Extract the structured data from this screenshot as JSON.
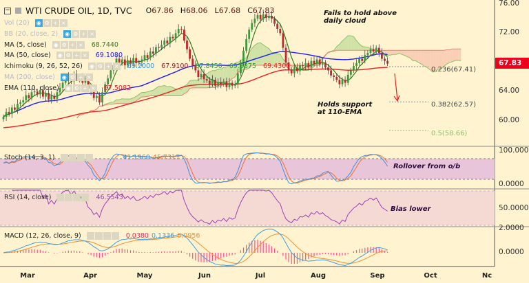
{
  "header": {
    "symbol": "WTI CRUDE OIL, 1D, TVC",
    "open_label": "O",
    "open": "67.86",
    "high_label": "H",
    "high": "68.06",
    "low_label": "L",
    "low": "67.68",
    "close_label": "C",
    "close": "67.83"
  },
  "indicators": [
    {
      "label": "Vol (20)",
      "value": "",
      "dim": true
    },
    {
      "label": "BB (20, close, 2)",
      "value": "",
      "dim": true
    },
    {
      "label": "MA (5, close)",
      "value": "68.7440",
      "color": "#2e7d1e"
    },
    {
      "label": "MA (50, close)",
      "value": "69.1080",
      "color": "#1a1aff"
    },
    {
      "label": "Ichimoku (9, 26, 52, 26)",
      "values": [
        "69.2000",
        "67.9100",
        "67.8450",
        "69.8875",
        "69.4300"
      ],
      "colors": [
        "#2196f3",
        "#8b1a1a",
        "#2e9a2e",
        "#2e9a2e",
        "#e52222"
      ]
    },
    {
      "label": "MA (200, close)",
      "value": "",
      "dim": true
    },
    {
      "label": "EMA (110, close)",
      "value": "67.5082",
      "color": "#e52222"
    }
  ],
  "oscillators": {
    "stoch": {
      "label": "Stoch (14, 3, 1)",
      "k": "41.1960",
      "d": "45.7317"
    },
    "rsi": {
      "label": "RSI (14, close)",
      "value": "46.5543"
    },
    "macd": {
      "label": "MACD (12, 26, close, 9)",
      "hist": "0.0380",
      "macd": "0.1336",
      "signal": "0.0956"
    }
  },
  "annotations": {
    "top": "Fails to hold above\ndaily cloud",
    "support": "Holds support\nat 110-EMA",
    "stoch": "Rollover from o/b",
    "rsi": "Bias lower"
  },
  "fib": [
    {
      "label": "0.236(67.41)",
      "price": 67.41,
      "color": "#888"
    },
    {
      "label": "0.382(62.57)",
      "price": 62.57,
      "color": "#888"
    },
    {
      "label": "0.5(58.66)",
      "price": 58.66,
      "color": "#8fbf6f"
    }
  ],
  "current_price": "67.83",
  "axes": {
    "price_ticks": [
      "76.00",
      "72.00",
      "64.00",
      "60.00"
    ],
    "stoch_ticks": [
      "100.0000",
      "0.0000"
    ],
    "rsi_ticks": [
      "50.0000"
    ],
    "macd_ticks": [
      "2.0000",
      "0.0000"
    ],
    "months": [
      "Mar",
      "Apr",
      "May",
      "Jun",
      "Jul",
      "Aug",
      "Sep",
      "Oct",
      "Nc"
    ]
  },
  "colors": {
    "up": "#3c9a3c",
    "down": "#c0262a",
    "ma5": "#2e7d1e",
    "ma50": "#1a1aff",
    "ema110": "#e52222",
    "stoch_k": "#3d8fe0",
    "stoch_d": "#f07030",
    "rsi": "#9b3fb5",
    "macd": "#3d9fe0",
    "signal": "#f09030",
    "hist": "#ff4d88"
  },
  "chart_data": {
    "type": "candlestick",
    "title": "WTI CRUDE OIL, 1D, TVC",
    "ylim": [
      56,
      76
    ],
    "closes": [
      60.5,
      61.2,
      60.9,
      61.8,
      61.5,
      62.3,
      62.5,
      62.8,
      63.5,
      63.1,
      63.9,
      64.0,
      63.6,
      64.2,
      63.3,
      63.8,
      62.9,
      63.4,
      63.0,
      63.9,
      64.5,
      65.2,
      65.6,
      66.0,
      65.4,
      66.3,
      65.8,
      66.0,
      65.2,
      65.5,
      64.4,
      64.0,
      63.1,
      63.4,
      62.5,
      63.9,
      65.0,
      65.8,
      66.9,
      67.6,
      68.5,
      67.9,
      68.4,
      67.6,
      68.3,
      67.8,
      68.6,
      67.9,
      68.0,
      68.4,
      69.0,
      68.6,
      69.5,
      69.2,
      70.1,
      70.0,
      70.4,
      71.0,
      70.6,
      71.5,
      71.3,
      72.0,
      72.6,
      72.5,
      71.0,
      69.8,
      68.5,
      67.6,
      66.9,
      66.0,
      66.4,
      65.7,
      65.5,
      65.0,
      65.6,
      64.8,
      65.3,
      65.0,
      65.4,
      64.6,
      65.2,
      64.8,
      65.0,
      66.5,
      68.0,
      69.6,
      71.2,
      72.5,
      73.4,
      74.0,
      74.5,
      73.9,
      74.6,
      74.1,
      74.4,
      74.0,
      73.3,
      72.6,
      72.0,
      70.0,
      68.0,
      67.0,
      66.5,
      67.2,
      66.8,
      67.6,
      67.5,
      67.9,
      67.3,
      68.2,
      67.8,
      68.4,
      67.7,
      68.0,
      67.3,
      66.9,
      66.2,
      66.0,
      65.6,
      65.0,
      65.6,
      65.2,
      66.3,
      66.9,
      67.5,
      67.9,
      68.5,
      68.2,
      69.0,
      69.3,
      69.8,
      69.5,
      70.0,
      69.3,
      68.5,
      68.2,
      67.83
    ]
  }
}
